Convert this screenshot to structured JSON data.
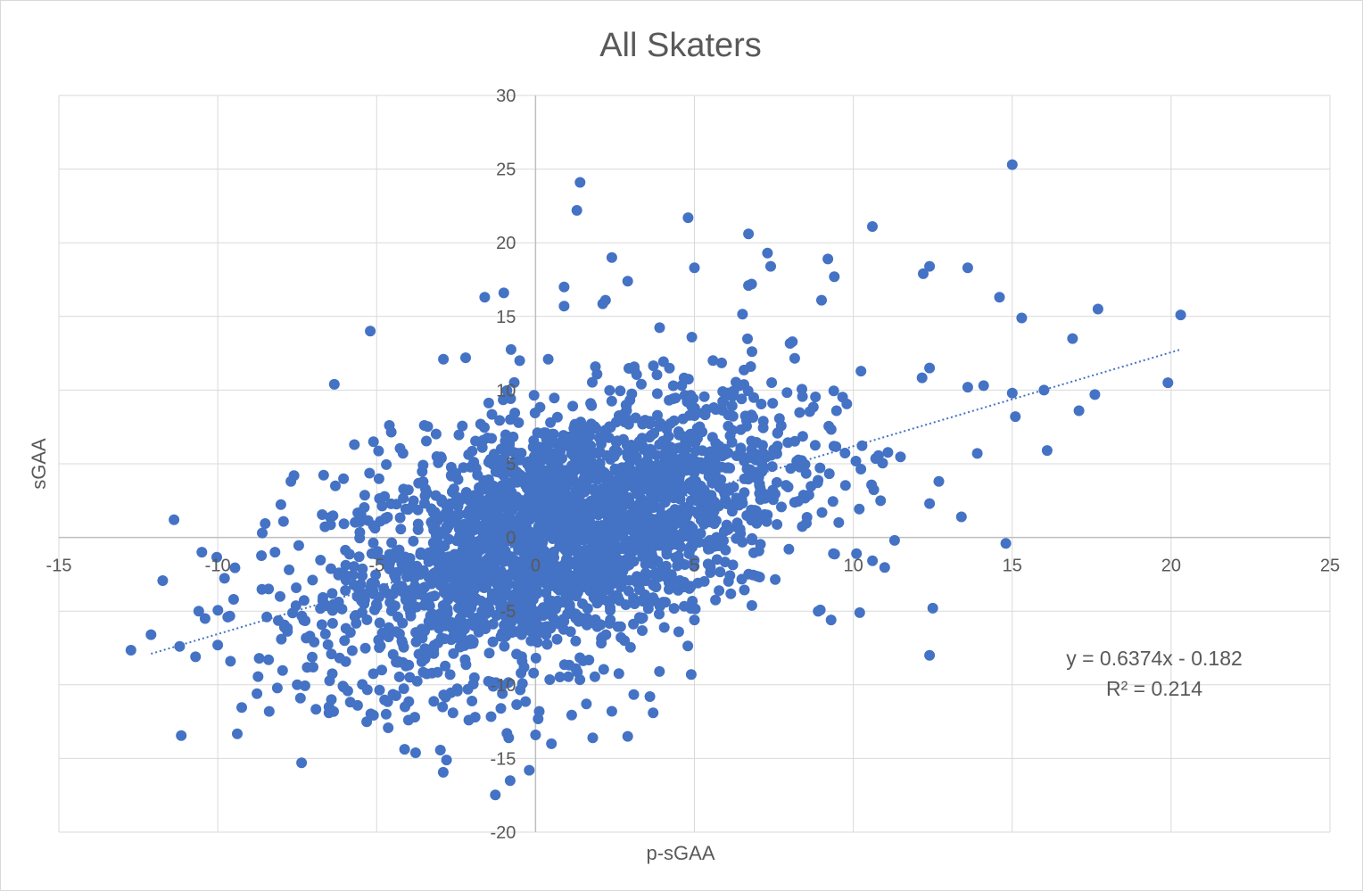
{
  "chart_data": {
    "type": "scatter",
    "title": "All Skaters",
    "xlabel": "p-sGAA",
    "ylabel": "sGAA",
    "xlim": [
      -15,
      25
    ],
    "ylim": [
      -20,
      30
    ],
    "x_ticks": [
      -15,
      -10,
      -5,
      0,
      5,
      10,
      15,
      20,
      25
    ],
    "y_ticks": [
      -20,
      -15,
      -10,
      -5,
      0,
      5,
      10,
      15,
      20,
      25,
      30
    ],
    "x_tick_labels": [
      "-15",
      "-10",
      "-5",
      "0",
      "5",
      "10",
      "15",
      "20",
      "25"
    ],
    "y_tick_labels": [
      "-20",
      "-15",
      "-10",
      "-5",
      "0",
      "5",
      "10",
      "15",
      "20",
      "25",
      "30"
    ],
    "grid": true,
    "marker_color": "#4472C4",
    "trendline": {
      "type": "linear",
      "style": "dotted",
      "slope": 0.6374,
      "intercept": -0.182,
      "x_range": [
        -12.1,
        20.3
      ],
      "equation_label": "y = 0.6374x - 0.182",
      "r2_label": "R² = 0.214"
    },
    "series": [
      {
        "points": [
          [
            15,
            25.3
          ],
          [
            1.4,
            24.1
          ],
          [
            1.3,
            22.2
          ],
          [
            4.8,
            21.7
          ],
          [
            10.6,
            21.1
          ],
          [
            6.7,
            20.6
          ],
          [
            2.4,
            19
          ],
          [
            7.3,
            19.3
          ],
          [
            9.2,
            18.9
          ],
          [
            13.6,
            18.3
          ],
          [
            5,
            18.3
          ],
          [
            7.4,
            18.4
          ],
          [
            12.4,
            18.4
          ],
          [
            12.2,
            17.9
          ],
          [
            9.4,
            17.7
          ],
          [
            2.9,
            17.4
          ],
          [
            6.7,
            17.1
          ],
          [
            6.8,
            17.2
          ],
          [
            0.9,
            17
          ],
          [
            -1,
            16.6
          ],
          [
            -1.6,
            16.3
          ],
          [
            14.6,
            16.3
          ],
          [
            2.2,
            16.1
          ],
          [
            9,
            16.1
          ],
          [
            0.9,
            15.7
          ],
          [
            17.7,
            15.5
          ],
          [
            20.3,
            15.1
          ],
          [
            15.3,
            14.9
          ],
          [
            -5.2,
            14
          ],
          [
            16.9,
            13.5
          ],
          [
            12.4,
            11.5
          ],
          [
            14.1,
            10.3
          ],
          [
            13.6,
            10.2
          ],
          [
            15,
            9.8
          ],
          [
            19.9,
            10.5
          ],
          [
            16,
            10
          ],
          [
            17.6,
            9.7
          ],
          [
            17.1,
            8.6
          ],
          [
            15.1,
            8.2
          ],
          [
            16.1,
            5.9
          ],
          [
            13.9,
            5.7
          ],
          [
            12.4,
            2.3
          ],
          [
            13.4,
            1.4
          ],
          [
            14.8,
            -0.4
          ],
          [
            12.5,
            -4.8
          ],
          [
            12.4,
            -8
          ],
          [
            10.2,
            -5.1
          ],
          [
            9.3,
            -5.6
          ],
          [
            10.1,
            -1.1
          ],
          [
            11.3,
            -0.2
          ],
          [
            -12.1,
            -6.6
          ],
          [
            -11.2,
            -7.4
          ],
          [
            -10.7,
            -8.1
          ],
          [
            -10.4,
            -5.5
          ],
          [
            -10.6,
            -5.0
          ],
          [
            -10.5,
            -1.0
          ],
          [
            -10,
            -7.3
          ],
          [
            -9.5,
            -4.2
          ],
          [
            -9.6,
            -8.4
          ],
          [
            -8.4,
            -8.3
          ],
          [
            -8.6,
            0.3
          ],
          [
            -8.4,
            -3.5
          ],
          [
            -8.2,
            -1.0
          ],
          [
            -7.9,
            -6.1
          ],
          [
            -7.6,
            4.2
          ],
          [
            -7.7,
            3.8
          ],
          [
            -8.0,
            -6.9
          ],
          [
            -7.4,
            -10.9
          ],
          [
            -7.5,
            -10.0
          ],
          [
            -7.0,
            -8.8
          ],
          [
            -6.5,
            -11.9
          ],
          [
            -6.5,
            -11.5
          ],
          [
            -5.6,
            -11.4
          ],
          [
            -4.7,
            -12.0
          ],
          [
            -4.0,
            -12.4
          ],
          [
            -3.8,
            -12.2
          ],
          [
            -2.8,
            -15.1
          ],
          [
            -2.6,
            -11.9
          ],
          [
            -2.1,
            -12.4
          ],
          [
            -2.0,
            -11.1
          ],
          [
            -1.9,
            -12.2
          ],
          [
            -0.9,
            -13.3
          ],
          [
            -0.8,
            -16.5
          ],
          [
            -0.2,
            -15.8
          ],
          [
            0,
            -13.4
          ],
          [
            0.5,
            -14.0
          ],
          [
            1.6,
            -11.3
          ],
          [
            1.8,
            -13.6
          ],
          [
            2.4,
            -11.8
          ],
          [
            2.9,
            -13.5
          ],
          [
            3.6,
            -10.8
          ],
          [
            3.7,
            -11.9
          ],
          [
            4.9,
            -9.3
          ],
          [
            3.9,
            -9.1
          ],
          [
            5.0,
            -5.6
          ],
          [
            -5.1,
            6.5
          ],
          [
            -5.7,
            6.3
          ],
          [
            -4.6,
            7.6
          ],
          [
            -3.5,
            7.6
          ],
          [
            -2.9,
            12.1
          ],
          [
            -2.2,
            12.2
          ],
          [
            -0.5,
            12.0
          ],
          [
            0.4,
            12.1
          ]
        ]
      }
    ]
  }
}
